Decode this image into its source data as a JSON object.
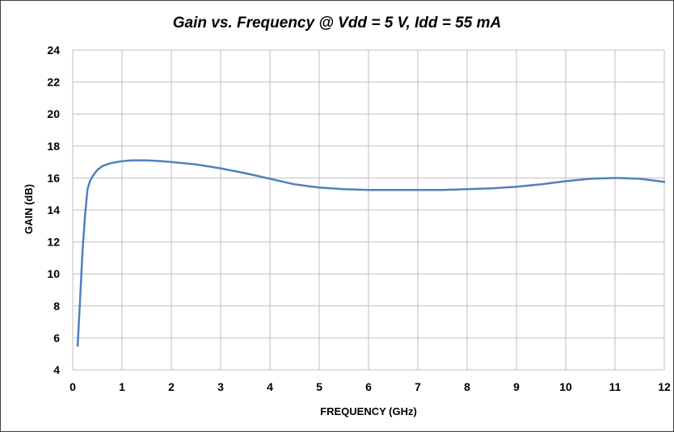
{
  "chart_data": {
    "type": "line",
    "title": "Gain vs. Frequency @ Vdd = 5 V, Idd = 55 mA",
    "xlabel": "FREQUENCY (GHz)",
    "ylabel": "GAIN (dB)",
    "xlim": [
      0,
      12
    ],
    "ylim": [
      4,
      24
    ],
    "x_ticks": [
      0,
      1,
      2,
      3,
      4,
      5,
      6,
      7,
      8,
      9,
      10,
      11,
      12
    ],
    "y_ticks": [
      4,
      6,
      8,
      10,
      12,
      14,
      16,
      18,
      20,
      22,
      24
    ],
    "grid": true,
    "legend": "none",
    "series": [
      {
        "color": "#4f81bd",
        "x": [
          0.1,
          0.15,
          0.2,
          0.25,
          0.3,
          0.35,
          0.4,
          0.5,
          0.6,
          0.8,
          1.0,
          1.2,
          1.5,
          1.8,
          2.0,
          2.5,
          3.0,
          3.5,
          4.0,
          4.5,
          5.0,
          5.5,
          6.0,
          6.5,
          7.0,
          7.5,
          8.0,
          8.5,
          9.0,
          9.5,
          10.0,
          10.5,
          11.0,
          11.5,
          12.0
        ],
        "y": [
          5.5,
          8.5,
          11.5,
          13.7,
          15.3,
          15.8,
          16.1,
          16.5,
          16.75,
          16.95,
          17.05,
          17.1,
          17.1,
          17.05,
          17.0,
          16.85,
          16.6,
          16.3,
          15.95,
          15.6,
          15.4,
          15.3,
          15.25,
          15.25,
          15.25,
          15.25,
          15.3,
          15.35,
          15.45,
          15.6,
          15.8,
          15.95,
          16.0,
          15.95,
          15.75
        ]
      }
    ]
  }
}
